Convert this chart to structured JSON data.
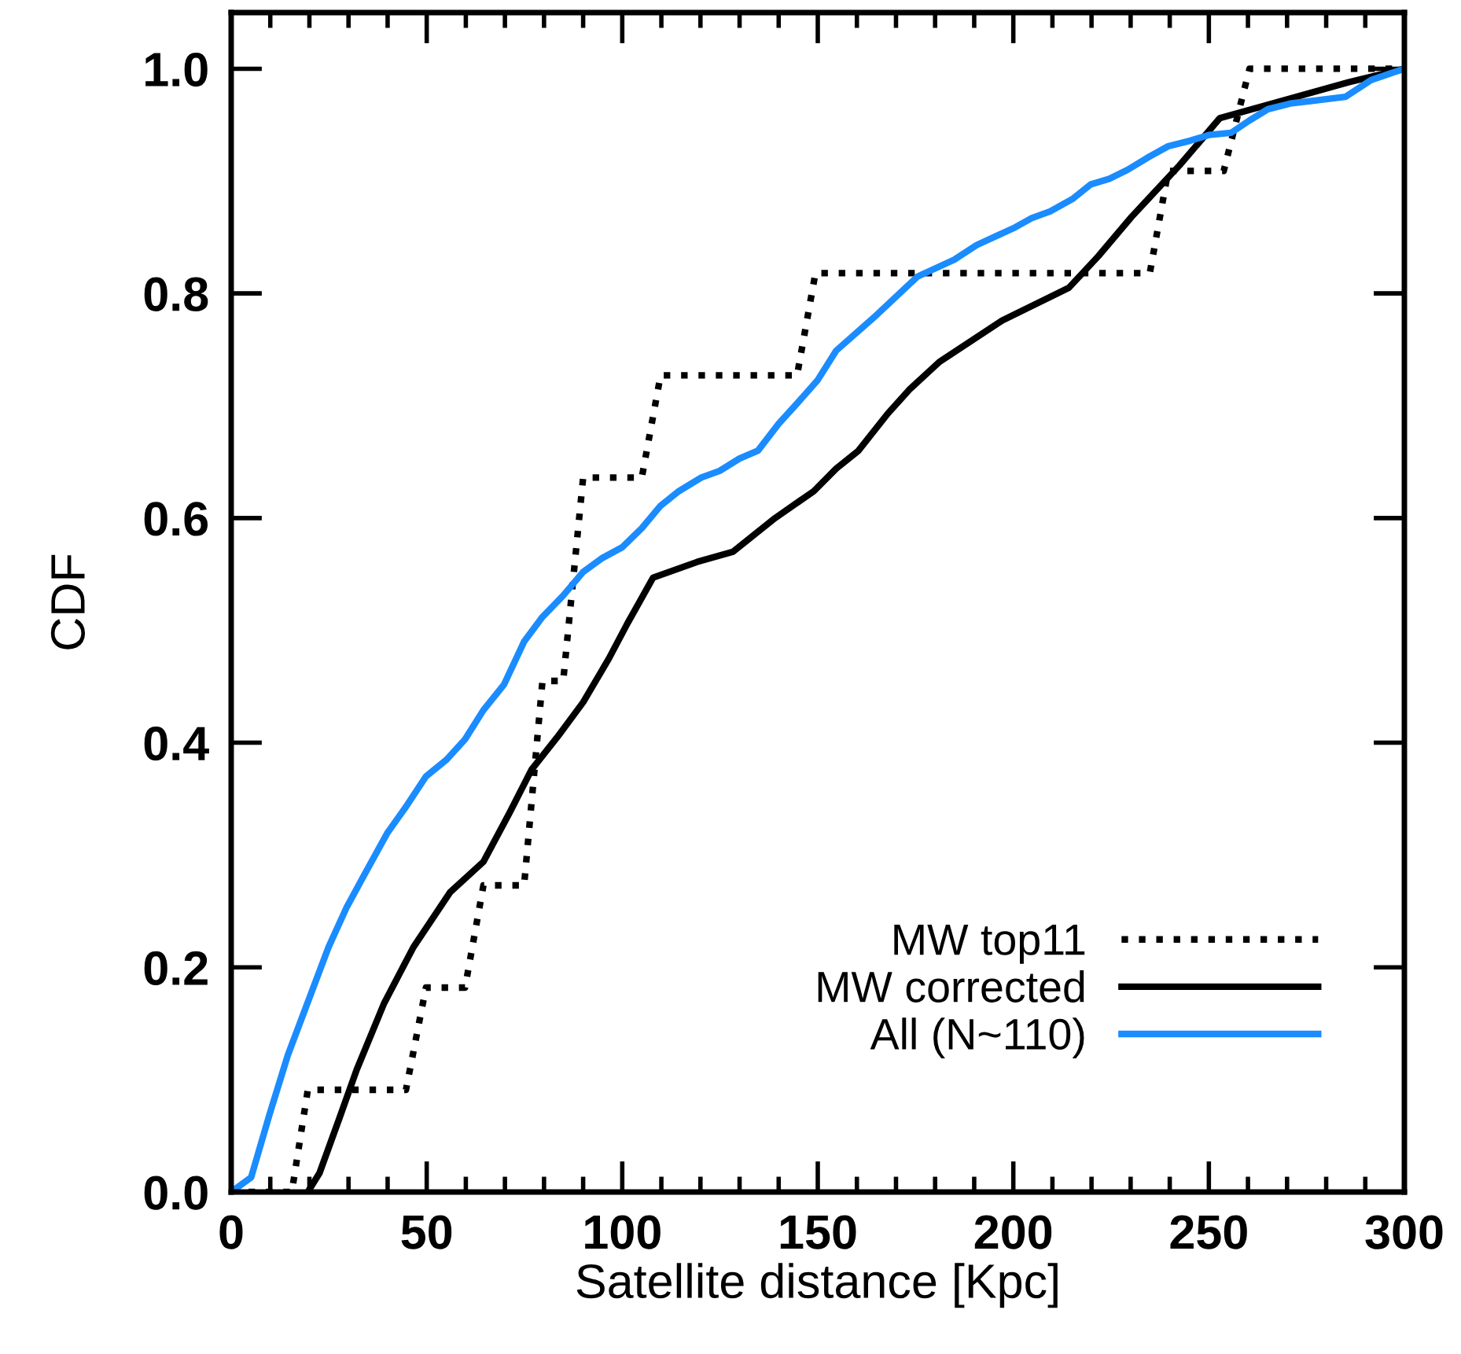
{
  "chart_data": {
    "type": "line",
    "xlabel": "Satellite distance [Kpc]",
    "ylabel": "CDF",
    "xlim": [
      0,
      300
    ],
    "ylim": [
      0,
      1.05
    ],
    "xticks": [
      0,
      50,
      100,
      150,
      200,
      250,
      300
    ],
    "yticks": [
      {
        "value": 0,
        "label": "0.0"
      },
      0.2,
      0.4,
      0.6,
      0.8,
      {
        "value": 1,
        "label": "1.0"
      }
    ],
    "grid": false,
    "legend": "bottom right",
    "marker": "none",
    "series": [
      {
        "name": "MW top11",
        "color": "#000000",
        "line_style": "dotted",
        "x": [
          0,
          15.5,
          19.6,
          44.7,
          49.8,
          59.8,
          64.5,
          74.9,
          79.6,
          84.9,
          90,
          105,
          109.8,
          144.7,
          149.4,
          234.9,
          239.6,
          253.8,
          260.4,
          300
        ],
        "values": [
          0,
          0,
          0.091,
          0.091,
          0.182,
          0.182,
          0.273,
          0.273,
          0.455,
          0.455,
          0.636,
          0.636,
          0.727,
          0.727,
          0.818,
          0.818,
          0.909,
          0.909,
          1.0,
          1.0
        ]
      },
      {
        "name": "MW corrected",
        "color": "#000000",
        "line_style": "solid",
        "x": [
          19.6,
          22.6,
          27.7,
          32.1,
          39.1,
          46.6,
          56,
          64.5,
          71.1,
          76.8,
          83.4,
          90,
          96.6,
          101.3,
          107.9,
          119.2,
          128.3,
          139.1,
          149,
          154.7,
          160.4,
          167.9,
          173.6,
          181.1,
          197.2,
          214.2,
          221.7,
          230.2,
          242.5,
          252.8,
          265.1,
          285.8,
          300
        ],
        "values": [
          0,
          0.017,
          0.066,
          0.109,
          0.168,
          0.218,
          0.267,
          0.294,
          0.337,
          0.376,
          0.405,
          0.436,
          0.475,
          0.506,
          0.547,
          0.561,
          0.57,
          0.6,
          0.624,
          0.644,
          0.66,
          0.693,
          0.715,
          0.739,
          0.776,
          0.805,
          0.833,
          0.868,
          0.914,
          0.956,
          0.968,
          0.988,
          1.0
        ]
      },
      {
        "name": "All (N~110)",
        "color": "#1a8cff",
        "line_style": "solid",
        "x": [
          0,
          5.1,
          9.8,
          14.5,
          24.9,
          29.6,
          34.3,
          40,
          44.7,
          49.8,
          55.1,
          59.8,
          64.5,
          69.8,
          74.9,
          79.6,
          84.9,
          90,
          94.7,
          100,
          105,
          109.8,
          114.5,
          120.2,
          124.9,
          130,
          134.7,
          140,
          144.7,
          150,
          154.7,
          165.1,
          175.5,
          184.9,
          190.6,
          200,
          204.7,
          209.4,
          215.1,
          219.8,
          224.5,
          229.2,
          234.9,
          239.6,
          245.3,
          250,
          255.7,
          260.4,
          265.1,
          270.8,
          275.5,
          284.9,
          291.5,
          300
        ],
        "values": [
          0,
          0.013,
          0.069,
          0.122,
          0.218,
          0.254,
          0.284,
          0.32,
          0.343,
          0.37,
          0.385,
          0.403,
          0.429,
          0.452,
          0.49,
          0.512,
          0.531,
          0.552,
          0.564,
          0.574,
          0.591,
          0.611,
          0.624,
          0.636,
          0.642,
          0.653,
          0.66,
          0.684,
          0.702,
          0.723,
          0.749,
          0.781,
          0.815,
          0.83,
          0.843,
          0.858,
          0.867,
          0.873,
          0.884,
          0.897,
          0.902,
          0.91,
          0.922,
          0.931,
          0.936,
          0.941,
          0.943,
          0.954,
          0.964,
          0.969,
          0.971,
          0.975,
          0.99,
          1.0
        ]
      }
    ]
  }
}
